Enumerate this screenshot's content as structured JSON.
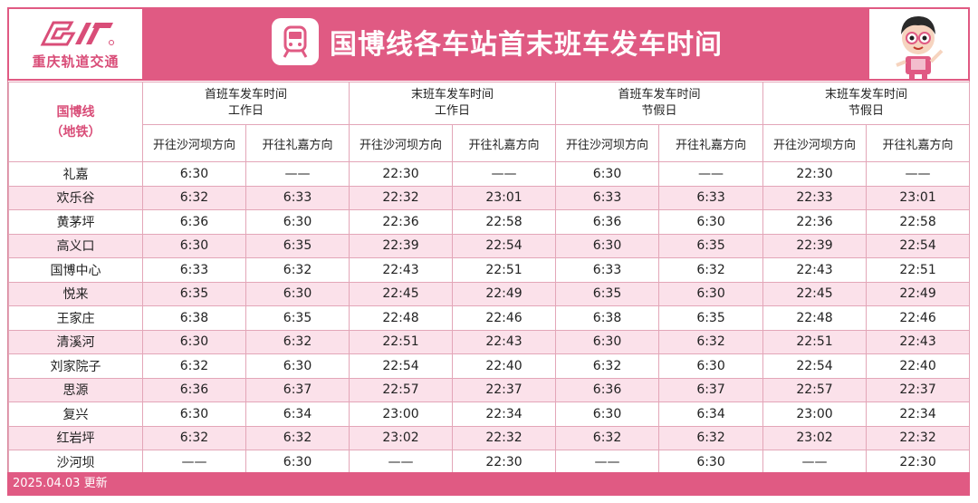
{
  "logo": {
    "text": "重庆轨道交通"
  },
  "title": "国博线各车站首末班车发车时间",
  "colors": {
    "brand_pink": "#e05a83",
    "row_pink": "#fbe1ea",
    "accent_text": "#d94d78"
  },
  "line_name": {
    "line1": "国博线",
    "line2": "（地铁）"
  },
  "groups": [
    {
      "line1": "首班车发车时间",
      "line2": "工作日"
    },
    {
      "line1": "末班车发车时间",
      "line2": "工作日"
    },
    {
      "line1": "首班车发车时间",
      "line2": "节假日"
    },
    {
      "line1": "末班车发车时间",
      "line2": "节假日"
    }
  ],
  "directions": [
    "开往沙河坝方向",
    "开往礼嘉方向",
    "开往沙河坝方向",
    "开往礼嘉方向",
    "开往沙河坝方向",
    "开往礼嘉方向",
    "开往沙河坝方向",
    "开往礼嘉方向"
  ],
  "rows": [
    {
      "station": "礼嘉",
      "times": [
        "6:30",
        "——",
        "22:30",
        "——",
        "6:30",
        "——",
        "22:30",
        "——"
      ]
    },
    {
      "station": "欢乐谷",
      "times": [
        "6:32",
        "6:33",
        "22:32",
        "23:01",
        "6:33",
        "6:33",
        "22:33",
        "23:01"
      ]
    },
    {
      "station": "黄茅坪",
      "times": [
        "6:36",
        "6:30",
        "22:36",
        "22:58",
        "6:36",
        "6:30",
        "22:36",
        "22:58"
      ]
    },
    {
      "station": "高义口",
      "times": [
        "6:30",
        "6:35",
        "22:39",
        "22:54",
        "6:30",
        "6:35",
        "22:39",
        "22:54"
      ]
    },
    {
      "station": "国博中心",
      "times": [
        "6:33",
        "6:32",
        "22:43",
        "22:51",
        "6:33",
        "6:32",
        "22:43",
        "22:51"
      ]
    },
    {
      "station": "悦来",
      "times": [
        "6:35",
        "6:30",
        "22:45",
        "22:49",
        "6:35",
        "6:30",
        "22:45",
        "22:49"
      ]
    },
    {
      "station": "王家庄",
      "times": [
        "6:38",
        "6:35",
        "22:48",
        "22:46",
        "6:38",
        "6:35",
        "22:48",
        "22:46"
      ]
    },
    {
      "station": "清溪河",
      "times": [
        "6:30",
        "6:32",
        "22:51",
        "22:43",
        "6:30",
        "6:32",
        "22:51",
        "22:43"
      ]
    },
    {
      "station": "刘家院子",
      "times": [
        "6:32",
        "6:30",
        "22:54",
        "22:40",
        "6:32",
        "6:30",
        "22:54",
        "22:40"
      ]
    },
    {
      "station": "思源",
      "times": [
        "6:36",
        "6:37",
        "22:57",
        "22:37",
        "6:36",
        "6:37",
        "22:57",
        "22:37"
      ]
    },
    {
      "station": "复兴",
      "times": [
        "6:30",
        "6:34",
        "23:00",
        "22:34",
        "6:30",
        "6:34",
        "23:00",
        "22:34"
      ]
    },
    {
      "station": "红岩坪",
      "times": [
        "6:32",
        "6:32",
        "23:02",
        "22:32",
        "6:32",
        "6:32",
        "23:02",
        "22:32"
      ]
    },
    {
      "station": "沙河坝",
      "times": [
        "——",
        "6:30",
        "——",
        "22:30",
        "——",
        "6:30",
        "——",
        "22:30"
      ]
    }
  ],
  "footer": "2025.04.03 更新"
}
